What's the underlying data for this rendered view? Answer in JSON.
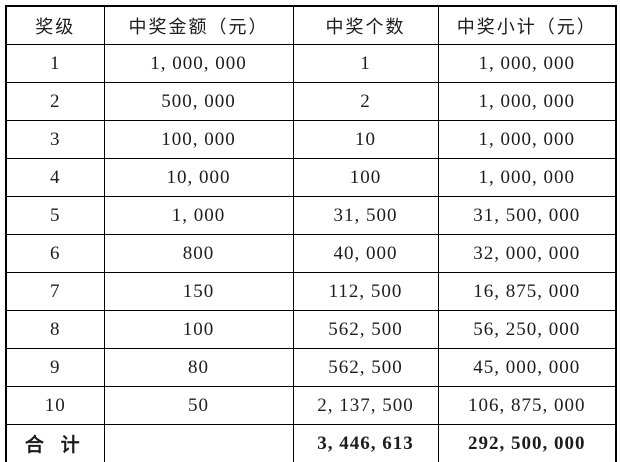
{
  "table": {
    "headers": [
      "奖级",
      "中奖金额（元）",
      "中奖个数",
      "中奖小计（元）"
    ],
    "rows": [
      [
        "1",
        "1, 000, 000",
        "1",
        "1, 000, 000"
      ],
      [
        "2",
        "500, 000",
        "2",
        "1, 000, 000"
      ],
      [
        "3",
        "100, 000",
        "10",
        "1, 000, 000"
      ],
      [
        "4",
        "10, 000",
        "100",
        "1, 000, 000"
      ],
      [
        "5",
        "1, 000",
        "31, 500",
        "31, 500, 000"
      ],
      [
        "6",
        "800",
        "40, 000",
        "32, 000, 000"
      ],
      [
        "7",
        "150",
        "112, 500",
        "16, 875, 000"
      ],
      [
        "8",
        "100",
        "562, 500",
        "56, 250, 000"
      ],
      [
        "9",
        "80",
        "562, 500",
        "45, 000, 000"
      ],
      [
        "10",
        "50",
        "2, 137, 500",
        "106, 875, 000"
      ]
    ],
    "total_row": {
      "label": "合 计",
      "amount": "",
      "count": "3, 446, 613",
      "subtotal": "292, 500, 000"
    },
    "colors": {
      "border": "#000000",
      "text": "#1c1c1c",
      "background": "#ffffff"
    }
  }
}
